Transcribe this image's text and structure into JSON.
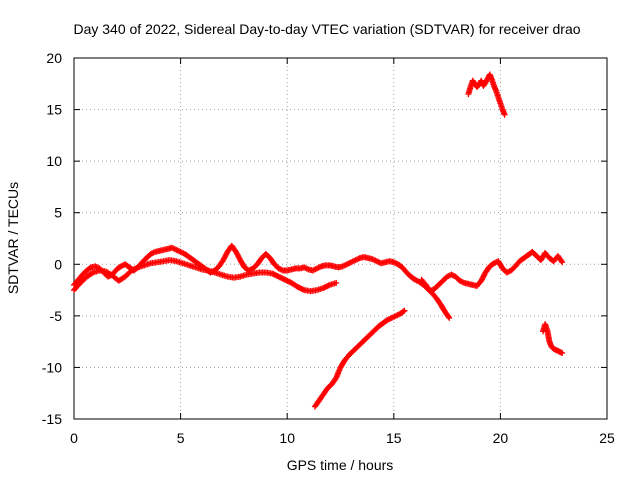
{
  "chart_data": {
    "type": "scatter",
    "title": "Day 340 of 2022, Sidereal Day-to-day VTEC variation (SDTVAR) for receiver drao",
    "xlabel": "GPS time / hours",
    "ylabel": "SDTVAR / TECUs",
    "xlim": [
      0,
      25
    ],
    "ylim": [
      -15,
      20
    ],
    "xticks": [
      0,
      5,
      10,
      15,
      20,
      25
    ],
    "yticks": [
      -15,
      -10,
      -5,
      0,
      5,
      10,
      15,
      20
    ],
    "grid": true,
    "marker": "plus",
    "color": "#ff0000",
    "series": [
      {
        "name": "main-trace",
        "x": [
          0.0,
          0.2,
          0.4,
          0.6,
          0.8,
          1.0,
          1.2,
          1.4,
          1.6,
          1.8,
          2.0,
          2.2,
          2.4,
          2.6,
          2.8,
          3.0,
          3.2,
          3.4,
          3.6,
          3.8,
          4.0,
          4.2,
          4.4,
          4.6,
          4.8,
          5.0,
          5.2,
          5.4,
          5.6,
          5.8,
          6.0,
          6.2,
          6.4,
          6.6,
          6.8,
          7.0,
          7.2,
          7.4,
          7.6,
          7.8,
          8.0,
          8.2,
          8.4,
          8.6,
          8.8,
          9.0,
          9.2,
          9.4,
          9.6,
          9.8,
          10.0,
          10.2,
          10.4,
          10.6,
          10.8,
          11.0,
          11.2,
          11.4,
          11.6,
          11.8,
          12.0,
          12.2,
          12.4,
          12.6,
          12.8,
          13.0,
          13.2,
          13.4,
          13.6,
          13.8,
          14.0,
          14.2,
          14.4,
          14.6,
          14.8,
          15.0,
          15.2,
          15.4,
          15.6,
          15.8,
          16.0,
          16.2,
          16.4,
          16.6,
          16.8,
          17.0,
          17.2,
          17.4,
          17.6
        ],
        "y": [
          -2.0,
          -1.5,
          -1.0,
          -0.6,
          -0.3,
          -0.2,
          -0.4,
          -0.8,
          -1.2,
          -1.0,
          -0.5,
          -0.2,
          0.0,
          -0.3,
          -0.6,
          -0.3,
          0.2,
          0.6,
          1.0,
          1.2,
          1.3,
          1.4,
          1.5,
          1.6,
          1.4,
          1.2,
          1.0,
          0.7,
          0.4,
          0.1,
          -0.2,
          -0.5,
          -0.8,
          -0.6,
          -0.2,
          0.4,
          1.2,
          1.8,
          1.2,
          0.4,
          -0.3,
          -0.6,
          -0.4,
          0.0,
          0.6,
          1.0,
          0.6,
          0.0,
          -0.4,
          -0.6,
          -0.6,
          -0.5,
          -0.4,
          -0.4,
          -0.3,
          -0.5,
          -0.6,
          -0.4,
          -0.2,
          -0.1,
          -0.1,
          -0.2,
          -0.3,
          -0.2,
          0.0,
          0.2,
          0.4,
          0.6,
          0.7,
          0.6,
          0.5,
          0.3,
          0.1,
          0.2,
          0.3,
          0.2,
          0.0,
          -0.3,
          -0.8,
          -1.2,
          -1.5,
          -1.7,
          -2.0,
          -2.4,
          -2.8,
          -3.3,
          -3.9,
          -4.6,
          -5.2
        ]
      },
      {
        "name": "lower-trace",
        "x": [
          0.0,
          0.3,
          0.6,
          0.9,
          1.2,
          1.5,
          1.8,
          2.1,
          2.4,
          2.7,
          3.0,
          3.3,
          3.6,
          3.9,
          4.2,
          4.5,
          4.8,
          5.1,
          5.4,
          5.7,
          6.0,
          6.3,
          6.6,
          6.9,
          7.2,
          7.5,
          7.8,
          8.1,
          8.4,
          8.7,
          9.0,
          9.3,
          9.6,
          9.9,
          10.2,
          10.5,
          10.8,
          11.1,
          11.4,
          11.7,
          12.0,
          12.3
        ],
        "y": [
          -2.5,
          -1.8,
          -1.2,
          -0.8,
          -0.6,
          -0.7,
          -1.1,
          -1.6,
          -1.2,
          -0.6,
          -0.3,
          -0.1,
          0.1,
          0.2,
          0.3,
          0.4,
          0.3,
          0.1,
          -0.1,
          -0.3,
          -0.5,
          -0.6,
          -0.8,
          -1.0,
          -1.2,
          -1.3,
          -1.2,
          -1.0,
          -0.9,
          -0.8,
          -0.8,
          -0.9,
          -1.2,
          -1.5,
          -1.8,
          -2.2,
          -2.5,
          -2.6,
          -2.5,
          -2.3,
          -2.0,
          -1.8
        ]
      },
      {
        "name": "rising-trace",
        "x": [
          11.3,
          11.5,
          11.7,
          11.9,
          12.1,
          12.3,
          12.5,
          12.7,
          12.9,
          13.1,
          13.3,
          13.5,
          13.7,
          13.9,
          14.1,
          14.3,
          14.5,
          14.7,
          14.9,
          15.1,
          15.3,
          15.5
        ],
        "y": [
          -13.8,
          -13.2,
          -12.6,
          -12.0,
          -11.6,
          -11.0,
          -10.0,
          -9.3,
          -8.8,
          -8.4,
          -8.0,
          -7.6,
          -7.2,
          -6.8,
          -6.4,
          -6.0,
          -5.7,
          -5.4,
          -5.2,
          -5.0,
          -4.8,
          -4.5
        ]
      },
      {
        "name": "evening-trace",
        "x": [
          16.3,
          16.5,
          16.7,
          16.9,
          17.1,
          17.3,
          17.5,
          17.7,
          17.9,
          18.1,
          18.3,
          18.5,
          18.7,
          18.9,
          19.1,
          19.3,
          19.5,
          19.7,
          19.9,
          20.1,
          20.3,
          20.5,
          20.7,
          20.9,
          21.1,
          21.3,
          21.5,
          21.7,
          21.9,
          22.1,
          22.3,
          22.5,
          22.7,
          22.9
        ],
        "y": [
          -1.5,
          -2.0,
          -2.6,
          -2.4,
          -2.0,
          -1.6,
          -1.2,
          -1.0,
          -1.2,
          -1.6,
          -1.8,
          -1.9,
          -2.0,
          -2.1,
          -1.6,
          -0.8,
          -0.2,
          0.1,
          0.3,
          -0.4,
          -0.8,
          -0.6,
          -0.2,
          0.3,
          0.6,
          0.9,
          1.2,
          0.8,
          0.4,
          1.1,
          0.6,
          0.3,
          0.8,
          0.2
        ]
      },
      {
        "name": "high-trace",
        "x": [
          18.5,
          18.6,
          18.7,
          18.8,
          18.9,
          19.0,
          19.1,
          19.2,
          19.3,
          19.4,
          19.5,
          19.6,
          19.7,
          19.8,
          19.9,
          20.0,
          20.1,
          20.2
        ],
        "y": [
          16.5,
          17.2,
          17.8,
          17.5,
          17.2,
          17.4,
          17.8,
          17.3,
          17.6,
          18.0,
          18.4,
          17.9,
          17.3,
          16.8,
          16.2,
          15.6,
          15.0,
          14.5
        ]
      },
      {
        "name": "late-trace",
        "x": [
          22.0,
          22.1,
          22.2,
          22.3,
          22.4,
          22.5,
          22.6,
          22.7,
          22.8,
          22.9
        ],
        "y": [
          -6.5,
          -5.8,
          -6.4,
          -7.5,
          -8.0,
          -8.2,
          -8.3,
          -8.4,
          -8.5,
          -8.6
        ]
      }
    ]
  }
}
